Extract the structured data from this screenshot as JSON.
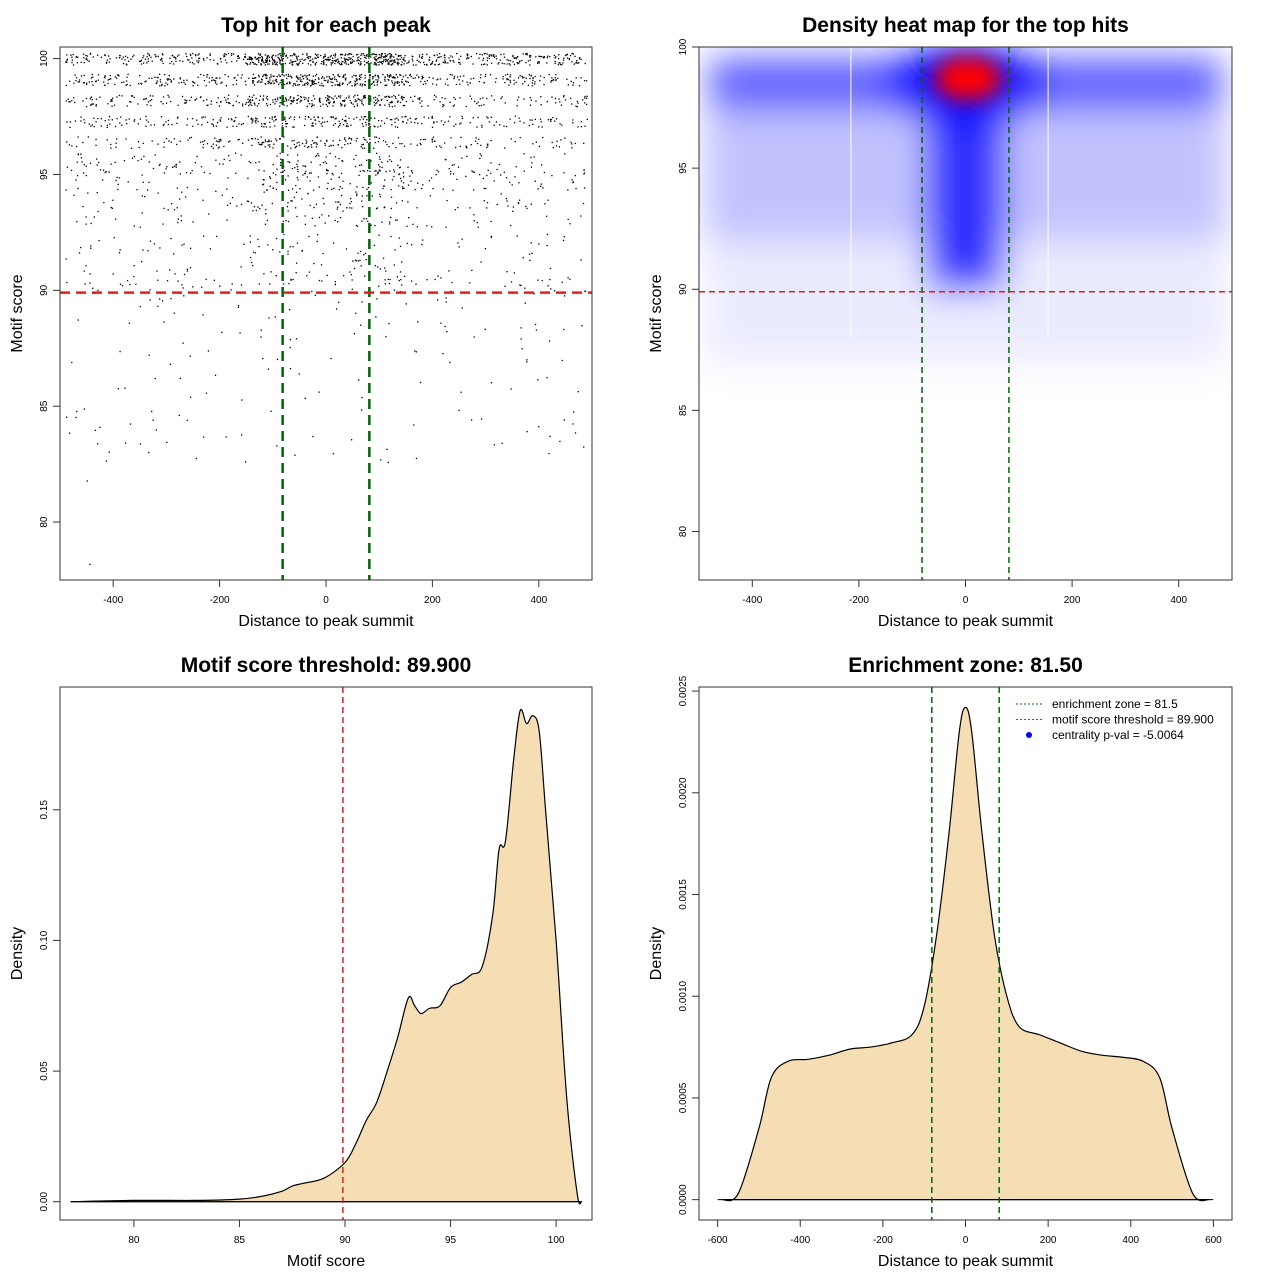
{
  "chart_data": [
    {
      "type": "scatter",
      "title": "Top hit for each peak",
      "xlabel": "Distance to peak summit",
      "ylabel": "Motif score",
      "xlim": [
        -500,
        500
      ],
      "ylim": [
        77.5,
        100.5
      ],
      "xticks": [
        "-400",
        "-200",
        "0",
        "200",
        "400"
      ],
      "xtick_values": [
        -400,
        -200,
        0,
        200,
        400
      ],
      "yticks": [
        "80",
        "85",
        "90",
        "95",
        "100"
      ],
      "ytick_values": [
        80,
        85,
        90,
        95,
        100
      ],
      "score_levels": [
        100,
        99.1,
        98.2,
        97.3,
        96.4,
        95.5,
        94.8,
        94.0,
        93.2,
        92.0,
        91.0
      ],
      "vlines": [
        -81.5,
        81.5
      ],
      "hline": 89.9,
      "colors": {
        "points": "#000000",
        "vline": "#006400",
        "hline": "#e0201e"
      }
    },
    {
      "type": "heatmap",
      "title": "Density heat map for the top hits",
      "xlabel": "Distance to peak summit",
      "ylabel": "Motif score",
      "xlim": [
        -500,
        500
      ],
      "ylim": [
        78,
        100
      ],
      "xticks": [
        "-400",
        "-200",
        "0",
        "200",
        "400"
      ],
      "xtick_values": [
        -400,
        -200,
        0,
        200,
        400
      ],
      "yticks": [
        "80",
        "85",
        "90",
        "95",
        "100"
      ],
      "ytick_values": [
        80,
        85,
        90,
        95,
        100
      ],
      "peak": {
        "x": 5,
        "y": 98.7
      },
      "vlines": [
        -81.5,
        81.5
      ],
      "hline": 89.9,
      "colors": {
        "low": "#ffffff",
        "mid": "#0000ff",
        "high": "#ff0000",
        "vline": "#006400",
        "hline": "#e0201e"
      }
    },
    {
      "type": "area",
      "title": "Motif score threshold: 89.900",
      "xlabel": "Motif score",
      "ylabel": "Density",
      "xlim": [
        76.5,
        101.7
      ],
      "ylim": [
        -0.007,
        0.197
      ],
      "xticks": [
        "80",
        "85",
        "90",
        "95",
        "100"
      ],
      "xtick_values": [
        80,
        85,
        90,
        95,
        100
      ],
      "yticks": [
        "0.00",
        "0.05",
        "0.10",
        "0.15"
      ],
      "ytick_values": [
        0,
        0.05,
        0.1,
        0.15
      ],
      "x": [
        77,
        80,
        83,
        85,
        86,
        87,
        87.5,
        88,
        89,
        90,
        90.5,
        91,
        91.5,
        92,
        92.5,
        93,
        93.3,
        93.6,
        94,
        94.5,
        95,
        95.5,
        96,
        96.5,
        97,
        97.3,
        97.6,
        98,
        98.3,
        98.6,
        98.9,
        99.2,
        99.5,
        100,
        100.5,
        101,
        101.2
      ],
      "y": [
        0,
        0.0005,
        0.0005,
        0.001,
        0.002,
        0.004,
        0.006,
        0.007,
        0.009,
        0.015,
        0.022,
        0.031,
        0.038,
        0.05,
        0.063,
        0.078,
        0.075,
        0.072,
        0.074,
        0.075,
        0.082,
        0.084,
        0.087,
        0.09,
        0.11,
        0.135,
        0.138,
        0.17,
        0.188,
        0.183,
        0.186,
        0.18,
        0.15,
        0.1,
        0.04,
        0.003,
        0
      ],
      "vline": 89.9,
      "colors": {
        "fill": "#f5deb3",
        "line": "#000000",
        "vline": "#e0201e"
      }
    },
    {
      "type": "area",
      "title": "Enrichment zone: 81.50",
      "xlabel": "Distance to peak summit",
      "ylabel": "Density",
      "xlim": [
        -645,
        645
      ],
      "ylim": [
        -0.0001,
        0.00252
      ],
      "xticks": [
        "-600",
        "-400",
        "-200",
        "0",
        "200",
        "400",
        "600"
      ],
      "xtick_values": [
        -600,
        -400,
        -200,
        0,
        200,
        400,
        600
      ],
      "yticks": [
        "0.0000",
        "0.0005",
        "0.0010",
        "0.0015",
        "0.0020",
        "0.0025"
      ],
      "ytick_values": [
        0,
        0.0005,
        0.001,
        0.0015,
        0.002,
        0.0025
      ],
      "x": [
        -590,
        -550,
        -500,
        -470,
        -430,
        -380,
        -330,
        -280,
        -230,
        -180,
        -130,
        -100,
        -70,
        -40,
        -15,
        0,
        15,
        40,
        70,
        100,
        130,
        180,
        230,
        280,
        330,
        380,
        430,
        470,
        500,
        550,
        590
      ],
      "y": [
        0,
        3e-05,
        0.00035,
        0.0006,
        0.00068,
        0.00069,
        0.00071,
        0.00074,
        0.00075,
        0.00077,
        0.00081,
        0.00095,
        0.0013,
        0.0018,
        0.0023,
        0.00242,
        0.0023,
        0.0018,
        0.0013,
        0.001,
        0.00085,
        0.00081,
        0.00077,
        0.00073,
        0.00071,
        0.0007,
        0.00068,
        0.0006,
        0.00035,
        3e-05,
        0
      ],
      "vlines": [
        -81.5,
        81.5
      ],
      "legend": {
        "position": "top-right",
        "entries": [
          "enrichment zone = 81.5",
          "motif score threshold = 89.900",
          "centrality p-val = -5.0064"
        ]
      },
      "colors": {
        "fill": "#f5deb3",
        "line": "#000000",
        "vline": "#006400",
        "legend_zone": "#006400",
        "legend_threshold": "#e0201e",
        "legend_pval": "#0000ff"
      }
    }
  ]
}
